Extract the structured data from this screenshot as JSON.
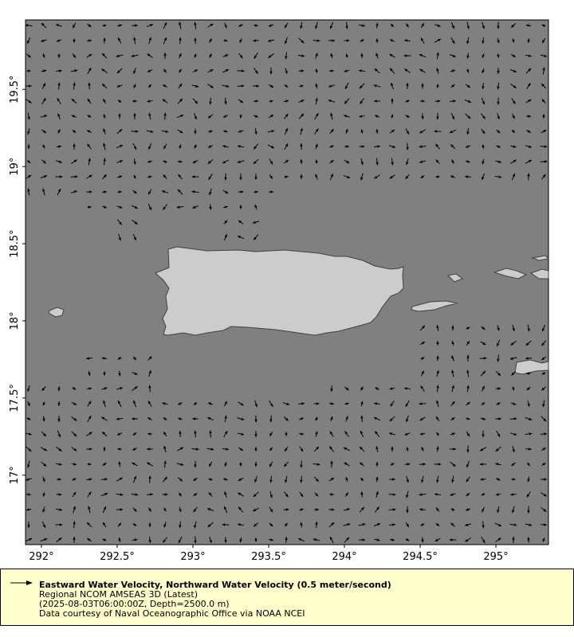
{
  "map": {
    "x_ticks": [
      "292°",
      "292.5°",
      "293°",
      "293.5°",
      "294°",
      "294.5°",
      "295°"
    ],
    "y_ticks": [
      "19.5°",
      "19°",
      "18.5°",
      "18°",
      "17.5°",
      "17°"
    ],
    "lon_range": [
      291.895,
      295.347
    ],
    "lat_range": [
      16.55,
      19.95
    ],
    "colors": {
      "ocean": "#808080",
      "land": "#cccccc",
      "coast": "#404040",
      "arrow": "#000000"
    }
  },
  "legend": {
    "title": "Eastward Water Velocity, Northward Water Velocity (0.5 meter/second)",
    "source": "Regional NCOM AMSEAS 3D (Latest)",
    "time_depth": "(2025-08-03T06:00:00Z, Depth=2500.0 m)",
    "credit": "Data courtesy of Naval Oceanographic Office via NOAA NCEI",
    "icon": "arrow-right-icon"
  }
}
